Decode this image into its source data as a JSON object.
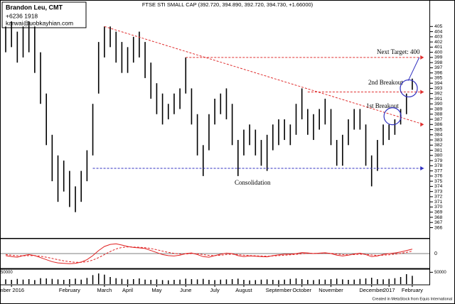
{
  "chart_data": {
    "type": "ohlc",
    "title": "FTSE STI SMALL CAP (392.720, 394.890, 392.720, 394.730, +1.66000)",
    "author": {
      "name": "Brandon Leu, CMT",
      "phone": "+6236 1918",
      "email": "karwai@uobkayhian.com"
    },
    "credit": "Created in MetaStock from Equis International",
    "high": [
      405,
      406,
      404,
      405,
      406,
      405,
      400,
      392,
      384,
      380,
      379,
      377,
      374,
      377,
      381,
      390,
      402,
      405,
      405,
      404,
      402,
      401,
      403,
      404,
      402,
      398,
      394,
      392,
      390,
      392,
      393,
      399,
      393,
      388,
      382,
      388,
      391,
      392,
      393,
      390,
      383,
      385,
      386,
      385,
      383,
      384,
      386,
      387,
      387,
      386,
      390,
      393,
      389,
      388,
      389,
      391,
      389,
      383,
      384,
      387,
      389,
      389,
      386,
      380,
      383,
      386,
      386,
      387,
      389,
      392,
      394.89
    ],
    "low": [
      400,
      401,
      398,
      399,
      400,
      396,
      390,
      382,
      375,
      371,
      373,
      370,
      369,
      371,
      375,
      380,
      392,
      399,
      401,
      398,
      396,
      396,
      398,
      399,
      395,
      391,
      388,
      386,
      387,
      388,
      389,
      392,
      386,
      380,
      376,
      381,
      386,
      388,
      387,
      382,
      376,
      380,
      382,
      380,
      378,
      377,
      381,
      382,
      383,
      382,
      384,
      387,
      384,
      383,
      385,
      386,
      382,
      378,
      378,
      382,
      385,
      385,
      378,
      374,
      377,
      382,
      383,
      384,
      386,
      388,
      392.72
    ],
    "color": "#000000",
    "ylim": [
      364,
      410
    ],
    "yticks": [
      366,
      367,
      368,
      369,
      370,
      371,
      372,
      373,
      374,
      375,
      376,
      377,
      378,
      379,
      380,
      381,
      382,
      383,
      384,
      385,
      386,
      387,
      388,
      389,
      390,
      391,
      392,
      393,
      394,
      395,
      396,
      397,
      398,
      399,
      400,
      401,
      402,
      403,
      404,
      405
    ],
    "xticks": [
      {
        "value": 1,
        "label": "mber 2016"
      },
      {
        "value": 11,
        "label": "February"
      },
      {
        "value": 17,
        "label": "March"
      },
      {
        "value": 21,
        "label": "April"
      },
      {
        "value": 26,
        "label": "May"
      },
      {
        "value": 31,
        "label": "June"
      },
      {
        "value": 36,
        "label": "July"
      },
      {
        "value": 41,
        "label": "August"
      },
      {
        "value": 47,
        "label": "September"
      },
      {
        "value": 51,
        "label": "October"
      },
      {
        "value": 56,
        "label": "November"
      },
      {
        "value": 63,
        "label": "December"
      },
      {
        "value": 66,
        "label": "2017"
      },
      {
        "value": 70,
        "label": "February"
      }
    ],
    "trendlines": [
      {
        "from": [
          17,
          405
        ],
        "to": [
          72,
          386
        ],
        "color": "#e03030"
      },
      {
        "from": [
          15,
          377.5
        ],
        "to": [
          72,
          377.5
        ],
        "color": "#3030c0"
      },
      {
        "from": [
          31,
          399
        ],
        "to": [
          72,
          399
        ],
        "color": "#e03030"
      },
      {
        "from": [
          52,
          392.3
        ],
        "to": [
          72,
          392.3
        ],
        "color": "#e03030"
      }
    ],
    "circles": [
      {
        "center": [
          66.6,
          387.6
        ],
        "color": "#3030c0"
      },
      {
        "center": [
          69.4,
          393
        ],
        "color": "#3030c0"
      }
    ],
    "annotations": {
      "target": "Next Target: 400",
      "breakout2": "2nd Breakout",
      "breakout1": "1st Breakout",
      "consolidation": "Consolidation"
    },
    "macd": {
      "ylim": [
        -7,
        7
      ],
      "yticks": [
        0
      ],
      "series": [
        {
          "color": "#e02020",
          "values": [
            -1,
            -1.5,
            -1.8,
            -1,
            -0.5,
            -1,
            -2,
            -3,
            -4,
            -4.6,
            -4.8,
            -5,
            -4.8,
            -4.2,
            -3,
            -1,
            1.5,
            3.5,
            4.5,
            4.8,
            4.2,
            3.5,
            3,
            2.8,
            2.5,
            1.5,
            0.5,
            -0.5,
            -1,
            -1.2,
            -0.8,
            0,
            0.3,
            -0.5,
            -1.5,
            -1.8,
            -1,
            -0.3,
            0.2,
            0,
            -1,
            -1.5,
            -1.2,
            -1.3,
            -1.5,
            -1.6,
            -1,
            -0.6,
            -0.3,
            -0.3,
            0,
            0.5,
            0.3,
            0,
            0.2,
            0.4,
            0,
            -0.8,
            -1.2,
            -0.8,
            -0.2,
            0.2,
            -0.5,
            -1.5,
            -1.2,
            -0.4,
            0,
            0.3,
            0.8,
            1.5,
            2.2
          ]
        },
        {
          "color": "#e02020",
          "dashed": true,
          "values": [
            -0.5,
            -0.8,
            -1.1,
            -1.1,
            -1,
            -1,
            -1.3,
            -1.8,
            -2.4,
            -3,
            -3.6,
            -4,
            -4.3,
            -4.3,
            -4,
            -3.2,
            -2,
            -0.5,
            1,
            2.3,
            3,
            3.3,
            3.2,
            3.1,
            2.9,
            2.5,
            1.9,
            1.2,
            0.6,
            0.1,
            -0.2,
            -0.2,
            0,
            -0.1,
            -0.5,
            -0.9,
            -1,
            -0.8,
            -0.5,
            -0.3,
            -0.5,
            -0.8,
            -1,
            -1.1,
            -1.2,
            -1.3,
            -1.2,
            -1,
            -0.8,
            -0.6,
            -0.4,
            -0.1,
            0.1,
            0.1,
            0.1,
            0.2,
            0.1,
            -0.2,
            -0.5,
            -0.6,
            -0.5,
            -0.3,
            -0.4,
            -0.7,
            -0.9,
            -0.8,
            -0.6,
            -0.3,
            0.1,
            0.6,
            1.2
          ]
        }
      ]
    },
    "volume": {
      "ylim": [
        0,
        60000
      ],
      "yticks": [
        50000
      ],
      "color": "#000000",
      "values": [
        20000,
        18000,
        22000,
        19000,
        21000,
        17000,
        25000,
        24000,
        22000,
        20000,
        18000,
        21000,
        23000,
        19000,
        26000,
        38000,
        45000,
        40000,
        30000,
        25000,
        22000,
        20000,
        21000,
        24000,
        19000,
        18000,
        20000,
        17000,
        16000,
        18000,
        19000,
        23000,
        21000,
        20000,
        22000,
        18000,
        17000,
        19000,
        20000,
        21000,
        23000,
        18000,
        16000,
        17000,
        19000,
        20000,
        18000,
        17000,
        19000,
        22000,
        24000,
        21000,
        18000,
        17000,
        20000,
        19000,
        21000,
        23000,
        20000,
        18000,
        19000,
        22000,
        24000,
        27000,
        21000,
        20000,
        22000,
        25000,
        30000,
        42000,
        35000
      ]
    }
  }
}
